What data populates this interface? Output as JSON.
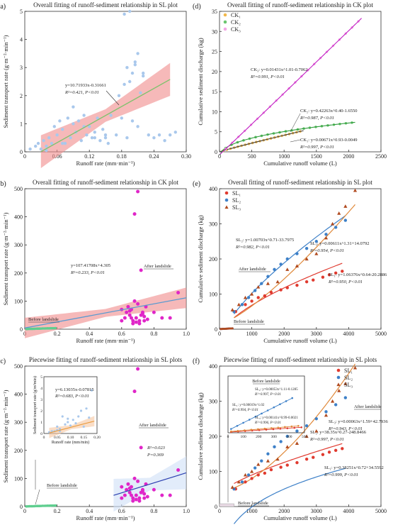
{
  "chart_data": [
    {
      "id": "a",
      "type": "scatter",
      "panel_label": "(a)",
      "title": "Overall fitting of runoff-sediment relationship in SL plot",
      "xlabel": "Runoff rate (mm·min⁻¹)",
      "ylabel": "Sediment transport rate (g·m⁻²·min⁻¹)",
      "xlim": [
        0,
        0.3
      ],
      "ylim": [
        0,
        5
      ],
      "xticks": [
        "0",
        "0.06",
        "0.12",
        "0.18",
        "0.24",
        "0.30"
      ],
      "yticks": [
        "0",
        "1",
        "2",
        "3",
        "4",
        "5"
      ],
      "point_color": "#a9c8ec",
      "x": [
        0.01,
        0.02,
        0.025,
        0.03,
        0.035,
        0.04,
        0.045,
        0.05,
        0.055,
        0.06,
        0.065,
        0.07,
        0.075,
        0.08,
        0.085,
        0.09,
        0.095,
        0.1,
        0.105,
        0.11,
        0.115,
        0.12,
        0.125,
        0.13,
        0.135,
        0.14,
        0.145,
        0.15,
        0.155,
        0.16,
        0.17,
        0.175,
        0.18,
        0.185,
        0.19,
        0.195,
        0.2,
        0.205,
        0.21,
        0.215,
        0.22,
        0.23,
        0.24,
        0.25,
        0.26,
        0.27,
        0.28,
        0.04,
        0.07,
        0.09,
        0.11,
        0.13,
        0.15,
        0.19,
        0.2,
        0.21,
        0.22,
        0.185,
        0.195,
        0.205
      ],
      "y": [
        0.1,
        0.2,
        0.3,
        0.1,
        0.4,
        0.2,
        0.5,
        0.3,
        0.9,
        0.6,
        1.1,
        0.8,
        0.3,
        1.2,
        0.5,
        1.0,
        0.7,
        1.1,
        0.4,
        1.3,
        0.6,
        0.9,
        0.5,
        0.7,
        1.2,
        0.4,
        0.8,
        0.5,
        0.3,
        1.3,
        0.6,
        2.0,
        1.2,
        4.9,
        3.0,
        2.5,
        1.1,
        3.2,
        0.9,
        2.1,
        2.8,
        0.6,
        0.5,
        0.6,
        0.4,
        0.6,
        0.7,
        0.05,
        0.3,
        1.6,
        0.9,
        0.5,
        0.6,
        0.5,
        2.8,
        3.5,
        2.7,
        2.4,
        5.0,
        3.1
      ],
      "fit": {
        "slope": 10.71933,
        "intercept": -0.31661,
        "x_range": [
          0.03,
          0.27
        ],
        "color": "#7cc26b",
        "band_color": "#f08a8a"
      },
      "equation": "y=10.71933x-0.31661",
      "stats": "R²=0.421, P<0.01"
    },
    {
      "id": "b",
      "type": "scatter",
      "panel_label": "(b)",
      "title": "Overall fitting of runoff-sediment relationship in CK plot",
      "xlabel": "Runoff rate (mm·min⁻¹)",
      "ylabel": "Sediment transport rate (g·m⁻²·min⁻¹)",
      "xlim": [
        0,
        1
      ],
      "ylim": [
        0,
        500
      ],
      "xticks": [
        "0",
        "0.2",
        "0.4",
        "0.6",
        "0.8",
        "1.0"
      ],
      "yticks": [
        "0",
        "100",
        "200",
        "300",
        "400",
        "500"
      ],
      "before_label": "Before landslide",
      "after_label": "After landslide",
      "before": {
        "color": "#5fce8f",
        "x": [
          0.01,
          0.02,
          0.03,
          0.04,
          0.05,
          0.06,
          0.07,
          0.08,
          0.09,
          0.1,
          0.11,
          0.12,
          0.13,
          0.14,
          0.15,
          0.16,
          0.17,
          0.18,
          0.19
        ],
        "y": [
          0.5,
          0.8,
          1,
          1,
          1.2,
          1.5,
          1.8,
          2,
          2,
          2.2,
          2.5,
          2.5,
          2.8,
          3,
          3,
          3.2,
          3.5,
          3.5,
          3.8
        ]
      },
      "after": {
        "color": "#e026c8",
        "x": [
          0.6,
          0.62,
          0.63,
          0.64,
          0.65,
          0.66,
          0.67,
          0.68,
          0.69,
          0.7,
          0.71,
          0.72,
          0.73,
          0.74,
          0.75,
          0.68,
          0.7,
          0.72,
          0.66,
          0.74,
          0.76,
          0.8,
          0.85,
          0.9,
          0.95,
          0.67,
          0.69,
          0.71,
          0.73,
          0.6,
          0.65
        ],
        "y": [
          30,
          40,
          60,
          80,
          50,
          70,
          30,
          410,
          40,
          90,
          20,
          210,
          60,
          30,
          80,
          100,
          490,
          50,
          40,
          45,
          35,
          60,
          40,
          40,
          130,
          20,
          25,
          30,
          55,
          70,
          65
        ]
      },
      "fit": {
        "slope": 107.41708,
        "intercept": 4.305,
        "x_range": [
          0,
          1
        ],
        "color": "#5a9ad0",
        "band_color": "#f08a8a"
      },
      "equation": "y=107.41708x+4.305",
      "stats": "R²=0.233, P<0.01"
    },
    {
      "id": "c",
      "type": "scatter",
      "panel_label": "(c)",
      "title": "Piecewise fitting of runoff-sediment relationship in SL plots",
      "xlabel": "Runoff rate (mm·min⁻¹)",
      "ylabel": "Sediment transport rate (g·m⁻²·min⁻¹)",
      "xlim": [
        0,
        1
      ],
      "ylim": [
        0,
        500
      ],
      "xticks": [
        "0",
        "0.2",
        "0.4",
        "0.6",
        "0.8",
        "1.0"
      ],
      "yticks": [
        "0",
        "100",
        "200",
        "300",
        "400",
        "500"
      ],
      "before_label": "Before landslide",
      "after_label": "After landslide",
      "before": {
        "color": "#5fce8f",
        "x": [
          0.01,
          0.02,
          0.03,
          0.04,
          0.05,
          0.06,
          0.07,
          0.08,
          0.09,
          0.1,
          0.11,
          0.12,
          0.13,
          0.14,
          0.15,
          0.16,
          0.17,
          0.18,
          0.19
        ],
        "y": [
          0.5,
          0.8,
          1,
          1,
          1.2,
          1.5,
          1.8,
          2,
          2,
          2.2,
          2.5,
          2.5,
          2.8,
          3,
          3,
          3.2,
          3.5,
          3.5,
          3.8
        ]
      },
      "after": {
        "color": "#e026c8",
        "x": [
          0.6,
          0.62,
          0.63,
          0.64,
          0.65,
          0.66,
          0.67,
          0.68,
          0.69,
          0.7,
          0.71,
          0.72,
          0.73,
          0.74,
          0.75,
          0.68,
          0.7,
          0.72,
          0.66,
          0.74,
          0.76,
          0.8,
          0.85,
          0.9,
          0.95,
          0.67,
          0.69,
          0.71,
          0.73,
          0.6,
          0.65
        ],
        "y": [
          30,
          40,
          60,
          80,
          50,
          70,
          30,
          410,
          40,
          90,
          20,
          210,
          60,
          30,
          80,
          100,
          490,
          50,
          40,
          45,
          35,
          60,
          40,
          40,
          130,
          20,
          25,
          30,
          55,
          70,
          65
        ]
      },
      "after_fit": {
        "y_start": 40,
        "y_end": 120,
        "x_range": [
          0.55,
          1.0
        ],
        "color": "#2b3fb0",
        "band_color": "#cfe0f7"
      },
      "after_stats": [
        "R²=0.023",
        "P=0.369"
      ],
      "inset": {
        "xlabel": "Runoff rate (mm/min)",
        "ylabel": "Sediment transport rate (g/m²min)",
        "xlim": [
          0,
          0.2
        ],
        "ylim": [
          0,
          5
        ],
        "xticks": [
          "0",
          "0.05",
          "0.10",
          "0.15",
          "0.20"
        ],
        "yticks": [
          "0",
          "1",
          "2",
          "3",
          "4",
          "5"
        ],
        "point_color": "#a9c8ec",
        "x": [
          0.02,
          0.03,
          0.04,
          0.05,
          0.05,
          0.06,
          0.07,
          0.08,
          0.09,
          0.1,
          0.11,
          0.12,
          0.13,
          0.14,
          0.15,
          0.16,
          0.17,
          0.18,
          0.06,
          0.09
        ],
        "y": [
          0.1,
          0.2,
          0.2,
          0.3,
          0.6,
          0.4,
          1.5,
          0.8,
          1.3,
          0.7,
          1.2,
          0.9,
          1.5,
          2.0,
          0.6,
          2.2,
          1.4,
          3.8,
          0.2,
          1.0
        ],
        "fit": {
          "slope": 6.13035,
          "intercept": -0.07815,
          "x_range": [
            0.02,
            0.19
          ],
          "color": "#e89a3c",
          "band_color": "#f6c7a0"
        },
        "equation": "y=6.13035x-0.07815",
        "stats": "R²=0.683, P<0.01"
      }
    },
    {
      "id": "d",
      "type": "scatter",
      "panel_label": "(d)",
      "title": "Overall fitting of runoff-sediment relationship in CK plot",
      "xlabel": "Cumulative runoff volume (L)",
      "ylabel": "Cumulative sediment discharge (kg)",
      "xlim": [
        0,
        2500
      ],
      "ylim": [
        0,
        35
      ],
      "xticks": [
        "0",
        "500",
        "1000",
        "1500",
        "2000",
        "2500"
      ],
      "yticks": [
        "0",
        "5",
        "10",
        "15",
        "20",
        "25",
        "30",
        "35"
      ],
      "legend": [
        "CK₁",
        "CK₂",
        "CK₃"
      ],
      "legend_position": "top-left",
      "series": [
        {
          "name": "CK₁",
          "color": "#f2b84b",
          "a": 0.00671,
          "b": 0.93,
          "c": -0.0049,
          "x_max": 1250,
          "line_color": "#444444",
          "equation": "CK₁: y=0.00671x^0.93-0.0049",
          "stats": "R²=0.997, P<0.01"
        },
        {
          "name": "CK₂",
          "color": "#6ac56f",
          "a": 0.42263,
          "b": 0.4,
          "c": -1.655,
          "x_max": 2050,
          "line_color": "#2f9a3c",
          "equation": "CK₂: y=0.42263x^0.40-1.6550",
          "stats": "R²=0.987, P<0.01"
        },
        {
          "name": "CK₃",
          "color": "#f3a6e6",
          "a": 0.01431,
          "b": 1.01,
          "c": -0.7062,
          "x_max": 2150,
          "line_color": "#c21fc4",
          "equation": "CK₃: y=0.01431x^1.01-0.7062",
          "stats": "R²=0.991, P<0.01"
        }
      ]
    },
    {
      "id": "e",
      "type": "scatter",
      "panel_label": "(e)",
      "title": "Overall fitting of runoff-sediment relationship in SL plot",
      "xlabel": "Cumulative runoff volume (L)",
      "ylabel": "Cumulative sediment discharge (kg)",
      "xlim": [
        0,
        5000
      ],
      "ylim": [
        0,
        400
      ],
      "xticks": [
        "0",
        "1000",
        "2000",
        "3000",
        "4000",
        "5000"
      ],
      "yticks": [
        "0",
        "100",
        "200",
        "300",
        "400"
      ],
      "legend": [
        "SL₁",
        "SL₂",
        "SL₃"
      ],
      "legend_position": "top-left",
      "before_label": "Before landslide",
      "after_label": "After landslide",
      "series": [
        {
          "name": "SL₁",
          "color": "#e03a2f",
          "marker": "circle",
          "x": [
            500,
            800,
            1000,
            1200,
            1400,
            1600,
            1900,
            2100,
            2400,
            2700,
            2900,
            3200,
            3400,
            3600,
            3800
          ],
          "y": [
            50,
            70,
            80,
            90,
            95,
            105,
            112,
            118,
            125,
            135,
            140,
            148,
            155,
            160,
            165
          ]
        },
        {
          "name": "SL₂",
          "color": "#3d80c8",
          "marker": "circle",
          "x": [
            450,
            700,
            900,
            1100,
            1300,
            1500,
            1700,
            1900,
            2100,
            2400,
            2700,
            3000,
            3300,
            3600,
            3900
          ],
          "y": [
            50,
            70,
            90,
            110,
            130,
            150,
            170,
            185,
            200,
            215,
            230,
            250,
            270,
            290,
            310
          ]
        },
        {
          "name": "SL₃",
          "color": "#b04a1f",
          "marker": "triangle",
          "x": [
            400,
            600,
            800,
            1000,
            1200,
            1500,
            1800,
            2100,
            2400,
            2700,
            3000,
            3300,
            3500,
            3700,
            3900,
            4200
          ],
          "y": [
            55,
            70,
            90,
            100,
            120,
            130,
            135,
            170,
            180,
            200,
            215,
            260,
            300,
            330,
            350,
            395
          ]
        }
      ],
      "fits": [
        {
          "name": "SL₁",
          "a": 1.06376,
          "b": 0.64,
          "c": -20.2886,
          "x_range": [
            450,
            3800
          ],
          "color": "#e03a2f",
          "equation": "SL₁: y=1.06376x^0.64-20.2886",
          "stats": "R²=0.950, P<0.01"
        },
        {
          "name": "SL₂",
          "a": 1.00703,
          "b": 0.71,
          "c": -33.7975,
          "x_range": [
            450,
            3900
          ],
          "color": "#3d80c8",
          "equation": "SL₂: y=1.00703x^0.71-33.7975",
          "stats": "R²=0.982, P<0.01"
        },
        {
          "name": "SL₃",
          "a": 0.00611,
          "b": 1.31,
          "c": 14.0792,
          "x_range": [
            450,
            4200
          ],
          "color": "#e0893a",
          "equation": "SL₃: y=0.00611x^1.31+14.0792",
          "stats": "R²=0.954, P<0.01"
        }
      ]
    },
    {
      "id": "f",
      "type": "scatter",
      "panel_label": "(f)",
      "title": "Piecewise fitting of runoff-sediment relationship in SL plots",
      "xlabel": "Cumulative runoff volume (L)",
      "ylabel": "Cumulative sediment discharge (kg)",
      "xlim": [
        0,
        5000
      ],
      "ylim": [
        0,
        400
      ],
      "xticks": [
        "0",
        "1000",
        "2000",
        "3000",
        "4000",
        "5000"
      ],
      "yticks": [
        "0",
        "100",
        "200",
        "300",
        "400"
      ],
      "legend": [
        "SL₁",
        "SL₂",
        "SL₃"
      ],
      "legend_position": "top-right",
      "before_label": "Before landslide",
      "after_label": "After landslide",
      "fits": [
        {
          "name": "SL₁",
          "a": 0.38251,
          "b": 0.72,
          "c": 34.5592,
          "x_range": [
            450,
            3800
          ],
          "color": "#e03a2f",
          "equation": "SL₁: y=0.38251x^0.72+34.5592",
          "stats": "R²=0.999, P<0.01"
        },
        {
          "name": "SL₂",
          "a": 38.35,
          "b": 0.27,
          "c": -248.8466,
          "x_range": [
            450,
            3900
          ],
          "color": "#3d80c8",
          "equation": "SL₂: y=38.35x^0.27-248.8466",
          "stats": "R²=0.997, P<0.01"
        },
        {
          "name": "SL₃",
          "a": 0.00063,
          "b": 1.59,
          "c": 42.7936,
          "x_range": [
            450,
            4200
          ],
          "color": "#e0893a",
          "equation": "SL₃: y=0.00063x^1.59+42.7936",
          "stats": "R²=0.943, P<0.01"
        }
      ],
      "inset": {
        "title": "Before landslide",
        "xlim": [
          0,
          500
        ],
        "ylim": [
          0,
          0.5
        ],
        "xticks": [
          "0",
          "100",
          "200",
          "300",
          "400",
          "500"
        ],
        "lines": [
          {
            "name": "SL₁",
            "color": "#e03a2f",
            "equation": "SL₁: y=0.00019x^1.02",
            "stats": "R²=0.994, P<0.01"
          },
          {
            "name": "SL₂",
            "color": "#3d80c8",
            "equation": "SL₂: y=0.00053x^1.11-0.1285",
            "stats": "R²=0.997, P<0.01"
          },
          {
            "name": "SL₃",
            "color": "#e0893a",
            "equation": "SL₃: y=0.00141x^0.99-0.0021",
            "stats": "R²=0.996, P<0.01"
          }
        ]
      }
    }
  ]
}
